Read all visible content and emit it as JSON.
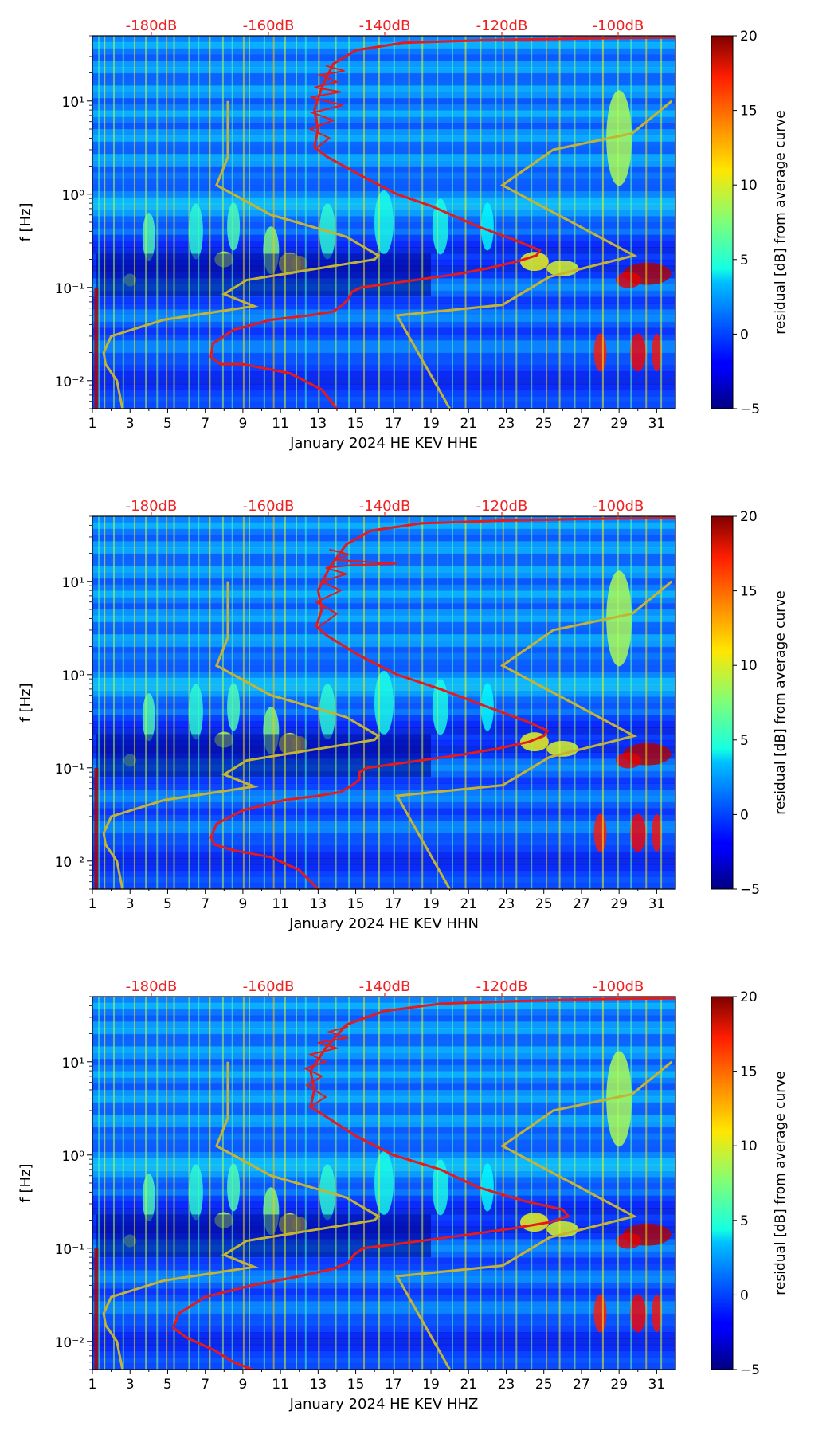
{
  "panels": [
    {
      "xlabel": "January 2024 HE KEV  HHE",
      "red_curve": [
        [
          14.0,
          0.005
        ],
        [
          13.2,
          0.008
        ],
        [
          11.5,
          0.012
        ],
        [
          9.0,
          0.015
        ],
        [
          7.8,
          0.015
        ],
        [
          7.3,
          0.018
        ],
        [
          7.4,
          0.025
        ],
        [
          8.5,
          0.035
        ],
        [
          10.5,
          0.045
        ],
        [
          12.5,
          0.05
        ],
        [
          13.8,
          0.055
        ],
        [
          14.3,
          0.065
        ],
        [
          14.6,
          0.075
        ],
        [
          14.8,
          0.09
        ],
        [
          15.3,
          0.1
        ],
        [
          17.5,
          0.115
        ],
        [
          20.5,
          0.14
        ],
        [
          22.0,
          0.16
        ],
        [
          23.6,
          0.19
        ],
        [
          24.6,
          0.22
        ],
        [
          24.8,
          0.25
        ],
        [
          23.5,
          0.32
        ],
        [
          21.5,
          0.45
        ],
        [
          19.0,
          0.75
        ],
        [
          17.2,
          1.0
        ],
        [
          15.5,
          1.5
        ],
        [
          13.5,
          2.5
        ],
        [
          12.8,
          3.2
        ],
        [
          13.0,
          5.0
        ],
        [
          12.8,
          8.0
        ],
        [
          13.2,
          14
        ],
        [
          13.8,
          25
        ],
        [
          15.0,
          35
        ],
        [
          17.5,
          42
        ],
        [
          22.0,
          45
        ],
        [
          28.0,
          47
        ],
        [
          32.0,
          48
        ]
      ],
      "red_jitter": [
        [
          12.8,
          3.0
        ],
        [
          13.6,
          4.0
        ],
        [
          12.6,
          5.0
        ],
        [
          13.8,
          6.2
        ],
        [
          12.7,
          7.5
        ],
        [
          14.3,
          9.0
        ],
        [
          12.6,
          11
        ],
        [
          14.2,
          12.5
        ],
        [
          12.8,
          14
        ],
        [
          14.0,
          16
        ],
        [
          13.1,
          19
        ],
        [
          14.4,
          21
        ],
        [
          13.4,
          24
        ]
      ]
    },
    {
      "xlabel": "January 2024 HE KEV  HHN",
      "red_curve": [
        [
          13.0,
          0.005
        ],
        [
          12.0,
          0.008
        ],
        [
          10.5,
          0.011
        ],
        [
          8.5,
          0.013
        ],
        [
          7.5,
          0.015
        ],
        [
          7.3,
          0.018
        ],
        [
          7.6,
          0.025
        ],
        [
          9.0,
          0.035
        ],
        [
          11.2,
          0.045
        ],
        [
          13.0,
          0.05
        ],
        [
          14.2,
          0.055
        ],
        [
          14.8,
          0.065
        ],
        [
          15.2,
          0.075
        ],
        [
          15.2,
          0.09
        ],
        [
          15.6,
          0.1
        ],
        [
          17.8,
          0.115
        ],
        [
          20.8,
          0.14
        ],
        [
          22.5,
          0.16
        ],
        [
          24.2,
          0.19
        ],
        [
          25.0,
          0.22
        ],
        [
          25.2,
          0.25
        ],
        [
          24.0,
          0.32
        ],
        [
          22.0,
          0.45
        ],
        [
          19.5,
          0.7
        ],
        [
          17.2,
          1.0
        ],
        [
          15.2,
          1.6
        ],
        [
          13.5,
          2.6
        ],
        [
          12.9,
          3.3
        ],
        [
          13.2,
          5.0
        ],
        [
          13.0,
          8.0
        ],
        [
          13.6,
          14
        ],
        [
          14.5,
          25
        ],
        [
          15.8,
          35
        ],
        [
          18.5,
          42
        ],
        [
          23.0,
          45
        ],
        [
          28.0,
          47
        ],
        [
          32.0,
          48
        ]
      ],
      "red_jitter": [
        [
          13.0,
          3.2
        ],
        [
          14.0,
          4.5
        ],
        [
          12.9,
          6.0
        ],
        [
          14.2,
          8.0
        ],
        [
          13.2,
          10
        ],
        [
          14.5,
          12
        ],
        [
          13.4,
          14
        ],
        [
          15.0,
          15
        ],
        [
          17.2,
          15.5
        ],
        [
          14.0,
          17
        ],
        [
          14.6,
          19.5
        ],
        [
          13.6,
          22
        ]
      ]
    },
    {
      "xlabel": "January 2024 HE KEV  HHZ",
      "red_curve": [
        [
          9.5,
          0.005
        ],
        [
          8.5,
          0.006
        ],
        [
          7.5,
          0.008
        ],
        [
          6.0,
          0.011
        ],
        [
          5.3,
          0.014
        ],
        [
          5.6,
          0.02
        ],
        [
          7.0,
          0.03
        ],
        [
          9.5,
          0.04
        ],
        [
          12.0,
          0.05
        ],
        [
          13.8,
          0.06
        ],
        [
          14.6,
          0.07
        ],
        [
          14.9,
          0.085
        ],
        [
          15.4,
          0.1
        ],
        [
          17.8,
          0.115
        ],
        [
          21.0,
          0.14
        ],
        [
          23.5,
          0.165
        ],
        [
          25.3,
          0.19
        ],
        [
          26.3,
          0.22
        ],
        [
          26.0,
          0.26
        ],
        [
          24.0,
          0.32
        ],
        [
          21.5,
          0.45
        ],
        [
          19.5,
          0.7
        ],
        [
          17.0,
          1.0
        ],
        [
          15.0,
          1.6
        ],
        [
          13.4,
          2.6
        ],
        [
          12.6,
          3.3
        ],
        [
          12.8,
          5.0
        ],
        [
          12.6,
          8.0
        ],
        [
          13.4,
          14
        ],
        [
          14.5,
          25
        ],
        [
          16.5,
          35
        ],
        [
          19.5,
          42
        ],
        [
          24.0,
          45
        ],
        [
          28.0,
          47
        ],
        [
          32.0,
          48
        ]
      ],
      "red_jitter": [
        [
          12.5,
          3.2
        ],
        [
          13.4,
          4.2
        ],
        [
          12.4,
          5.6
        ],
        [
          13.2,
          7.0
        ],
        [
          12.3,
          8.5
        ],
        [
          13.4,
          10
        ],
        [
          12.6,
          12
        ],
        [
          14.0,
          14
        ],
        [
          13.0,
          16
        ],
        [
          14.5,
          18
        ],
        [
          13.6,
          21
        ],
        [
          14.6,
          24
        ]
      ]
    }
  ],
  "chart_data": {
    "type": "heatmap",
    "x": {
      "label_prefix": "January 2024 HE KEV",
      "ticks": [
        "1",
        "3",
        "5",
        "7",
        "9",
        "11",
        "13",
        "15",
        "17",
        "19",
        "21",
        "23",
        "25",
        "27",
        "29",
        "31"
      ],
      "range": [
        1,
        32
      ]
    },
    "y": {
      "label": "f [Hz]",
      "scale": "log",
      "range": [
        0.005,
        50
      ],
      "ticks": [
        "10⁻²",
        "10⁻¹",
        "10⁰",
        "10¹"
      ]
    },
    "top_axis": {
      "ticks": [
        "-180dB",
        "-160dB",
        "-140dB",
        "-120dB",
        "-100dB"
      ],
      "color": "#ee2222"
    },
    "colorbar": {
      "label": "residual [dB] from average curve",
      "ticks": [
        "−5",
        "0",
        "5",
        "10",
        "15",
        "20"
      ],
      "range": [
        -5,
        20
      ],
      "colormap": "jet"
    },
    "noise_model_curve": [
      [
        8.2,
        10
      ],
      [
        8.2,
        2.5
      ],
      [
        7.6,
        1.25
      ],
      [
        10.5,
        0.6
      ],
      [
        14.5,
        0.35
      ],
      [
        16.2,
        0.22
      ],
      [
        16.0,
        0.2
      ],
      [
        9.2,
        0.12
      ],
      [
        8.0,
        0.085
      ],
      [
        9.6,
        0.063
      ],
      [
        4.8,
        0.045
      ],
      [
        2.0,
        0.03
      ],
      [
        1.6,
        0.02
      ],
      [
        1.7,
        0.015
      ],
      [
        2.3,
        0.01
      ],
      [
        2.6,
        0.005
      ]
    ],
    "high_noise_curve": [
      [
        31.8,
        10
      ],
      [
        29.7,
        4.5
      ],
      [
        25.5,
        3.0
      ],
      [
        22.8,
        1.25
      ],
      [
        29.8,
        0.22
      ],
      [
        25.3,
        0.13
      ],
      [
        22.8,
        0.065
      ],
      [
        17.2,
        0.05
      ],
      [
        20.0,
        0.005
      ]
    ]
  },
  "colors": {
    "top_label": "#ee2222",
    "red_curve": "#e41a1c",
    "yellow_curve": "#c4b434"
  }
}
